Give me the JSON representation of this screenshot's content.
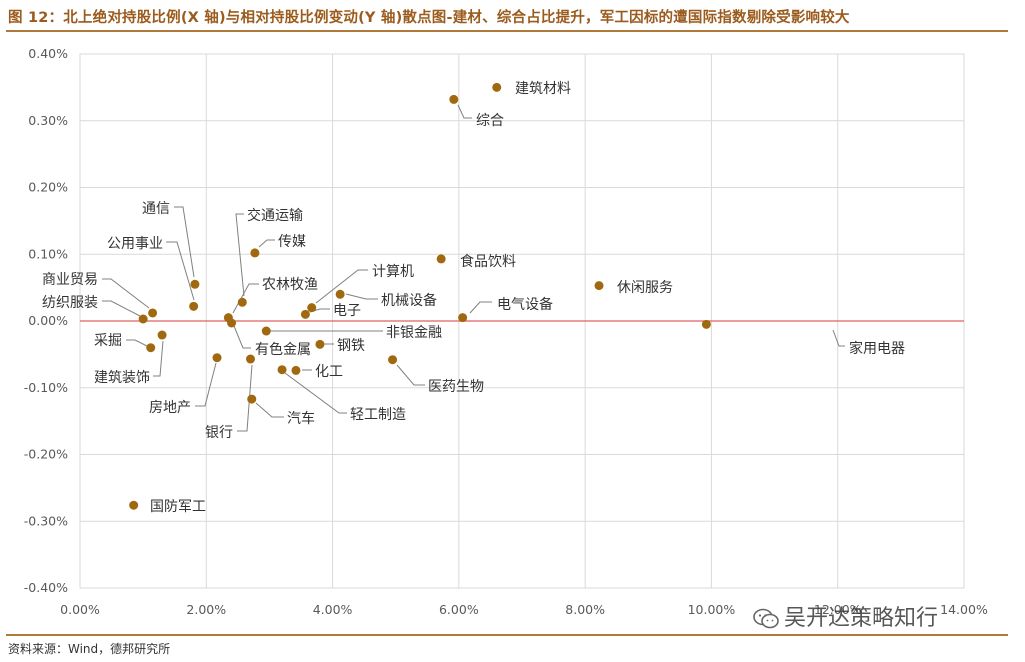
{
  "header": {
    "title": "图 12：北上绝对持股比例(X 轴)与相对持股比例变动(Y 轴)散点图-建材、综合占比提升，军工因标的遭国际指数剔除受影响较大"
  },
  "footer": {
    "source": "资料来源：Wind，德邦研究所"
  },
  "watermark": {
    "text": "吴开达策略知行"
  },
  "colors": {
    "title": "#9a5b1c",
    "rule": "#b07a3b",
    "marker": "#a0690f",
    "zero_line": "#e06060",
    "grid": "#d9d9d9",
    "leader": "#808080"
  },
  "chart_data": {
    "type": "scatter",
    "title": "北上绝对持股比例(X 轴)与相对持股比例变动(Y 轴)散点图",
    "xlabel": "北上绝对持股比例",
    "ylabel": "相对持股比例变动",
    "xlim": [
      0,
      14
    ],
    "ylim": [
      -0.4,
      0.4
    ],
    "x_ticks": [
      0,
      2,
      4,
      6,
      8,
      10,
      12,
      14
    ],
    "y_ticks": [
      0.4,
      0.3,
      0.2,
      0.1,
      0.0,
      -0.1,
      -0.2,
      -0.3,
      -0.4
    ],
    "x_tick_labels": [
      "0.00%",
      "2.00%",
      "4.00%",
      "6.00%",
      "8.00%",
      "10.00%",
      "12.00%",
      "14.00%"
    ],
    "y_tick_labels": [
      "0.40%",
      "0.30%",
      "0.20%",
      "0.10%",
      "0.00%",
      "-0.10%",
      "-0.20%",
      "-0.30%",
      "-0.40%"
    ],
    "grid": true,
    "reference_line_y": 0,
    "points": [
      {
        "label": "建筑材料",
        "x": 6.6,
        "y": 0.35
      },
      {
        "label": "综合",
        "x": 5.92,
        "y": 0.332
      },
      {
        "label": "食品饮料",
        "x": 5.72,
        "y": 0.093
      },
      {
        "label": "休闲服务",
        "x": 8.22,
        "y": 0.053
      },
      {
        "label": "电气设备",
        "x": 6.06,
        "y": 0.005
      },
      {
        "label": "家用电器",
        "x": 9.92,
        "y": -0.005
      },
      {
        "label": "通信",
        "x": 1.82,
        "y": 0.055
      },
      {
        "label": "公用事业",
        "x": 1.8,
        "y": 0.022
      },
      {
        "label": "交通运输",
        "x": 2.57,
        "y": 0.028
      },
      {
        "label": "传媒",
        "x": 2.77,
        "y": 0.102
      },
      {
        "label": "农林牧渔",
        "x": 2.4,
        "y": -0.003
      },
      {
        "label": "计算机",
        "x": 3.67,
        "y": 0.02
      },
      {
        "label": "机械设备",
        "x": 4.12,
        "y": 0.04
      },
      {
        "label": "电子",
        "x": 3.57,
        "y": 0.01
      },
      {
        "label": "商业贸易",
        "x": 1.15,
        "y": 0.012
      },
      {
        "label": "纺织服装",
        "x": 1.0,
        "y": 0.003
      },
      {
        "label": "非银金融",
        "x": 2.95,
        "y": -0.015
      },
      {
        "label": "采掘",
        "x": 1.12,
        "y": -0.04
      },
      {
        "label": "建筑装饰",
        "x": 1.3,
        "y": -0.021
      },
      {
        "label": "有色金属",
        "x": 2.35,
        "y": 0.005
      },
      {
        "label": "钢铁",
        "x": 3.8,
        "y": -0.035
      },
      {
        "label": "房地产",
        "x": 2.17,
        "y": -0.055
      },
      {
        "label": "银行",
        "x": 2.7,
        "y": -0.057
      },
      {
        "label": "化工",
        "x": 3.42,
        "y": -0.074
      },
      {
        "label": "汽车",
        "x": 2.72,
        "y": -0.117
      },
      {
        "label": "轻工制造",
        "x": 3.2,
        "y": -0.073
      },
      {
        "label": "医药生物",
        "x": 4.95,
        "y": -0.058
      },
      {
        "label": "国防军工",
        "x": 0.85,
        "y": -0.276
      }
    ]
  }
}
